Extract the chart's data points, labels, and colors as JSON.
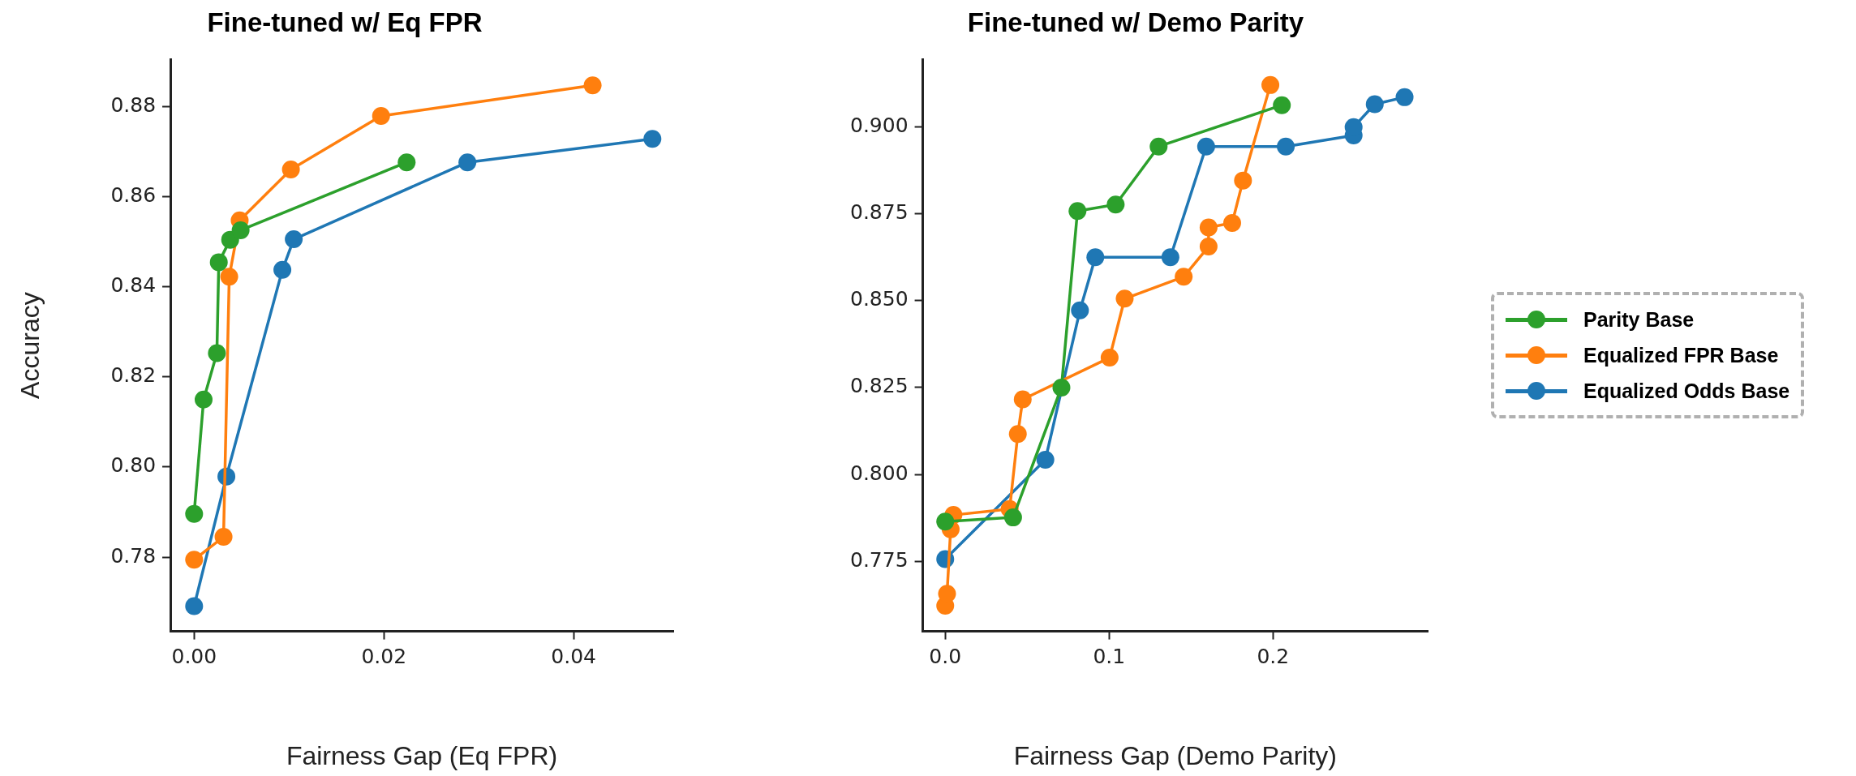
{
  "chart_data": [
    {
      "type": "line",
      "title": "Fine-tuned w/ Eq FPR",
      "xlabel": "Fairness Gap (Eq FPR)",
      "ylabel": "Accuracy",
      "marker": "circle",
      "line_style": "solid",
      "xlim": [
        -0.0025,
        0.0505
      ],
      "xticks": [
        {
          "value": 0,
          "label": "0.00"
        },
        {
          "value": 0.02,
          "label": "0.02"
        },
        {
          "value": 0.04,
          "label": "0.04"
        }
      ],
      "ylim": [
        0.7635,
        0.8905
      ],
      "yticks": [
        0.78,
        {
          "value": 0.8,
          "label": "0.80"
        },
        0.82,
        0.84,
        0.86,
        0.88
      ],
      "series": [
        {
          "color": "#2ca02c",
          "x": [
            0,
            0.001,
            0.0024,
            0.0026,
            0.0038,
            0.0049,
            0.0224
          ],
          "values": [
            0.7896,
            0.815,
            0.8253,
            0.8455,
            0.8505,
            0.8526,
            0.8677
          ]
        },
        {
          "color": "#ff7f0e",
          "x": [
            0,
            0.0031,
            0.0037,
            0.0048,
            0.0102,
            0.0197,
            0.042
          ],
          "values": [
            0.7794,
            0.7845,
            0.8423,
            0.8548,
            0.8661,
            0.878,
            0.8848
          ]
        },
        {
          "color": "#1f77b4",
          "x": [
            0,
            0.0034,
            0.0093,
            0.0105,
            0.0288,
            0.0483
          ],
          "values": [
            0.7691,
            0.7979,
            0.8438,
            0.8506,
            0.8677,
            0.8729
          ]
        }
      ]
    },
    {
      "type": "line",
      "title": "Fine-tuned w/ Demo Parity",
      "xlabel": "Fairness Gap (Demo Parity)",
      "marker": "circle",
      "line_style": "solid",
      "legend": "right",
      "xlim": [
        -0.0137,
        0.2944
      ],
      "xticks": [
        {
          "value": 0,
          "label": "0.0"
        },
        {
          "value": 0.1,
          "label": "0.1"
        },
        {
          "value": 0.2,
          "label": "0.2"
        }
      ],
      "ylim": [
        0.7548,
        0.9194
      ],
      "yticks": [
        0.775,
        {
          "value": 0.8,
          "label": "0.800"
        },
        0.825,
        {
          "value": 0.85,
          "label": "0.850"
        },
        0.875,
        {
          "value": 0.9,
          "label": "0.900"
        }
      ],
      "series": [
        {
          "name": "Parity Base",
          "color": "#2ca02c",
          "x": [
            0,
            0.0414,
            0.0709,
            0.0807,
            0.104,
            0.1302,
            0.2054
          ],
          "values": [
            0.7864,
            0.7876,
            0.825,
            0.8758,
            0.8777,
            0.8944,
            0.9063
          ]
        },
        {
          "name": "Equalized FPR Base",
          "color": "#ff7f0e",
          "x": [
            0,
            0.0011,
            0.0033,
            0.005,
            0.0393,
            0.0443,
            0.0473,
            0.1003,
            0.1095,
            0.1455,
            0.1607,
            0.1607,
            0.1751,
            0.1817,
            0.1984
          ],
          "values": [
            0.7622,
            0.7656,
            0.7842,
            0.7883,
            0.79,
            0.8116,
            0.8216,
            0.8336,
            0.8506,
            0.8569,
            0.8656,
            0.8711,
            0.8724,
            0.8846,
            0.9121
          ]
        },
        {
          "name": "Equalized Odds Base",
          "color": "#1f77b4",
          "x": [
            0,
            0.003,
            0.0611,
            0.0822,
            0.0916,
            0.1374,
            0.1592,
            0.2078,
            0.2492,
            0.2492,
            0.2621,
            0.2803
          ],
          "values": [
            0.7756,
            null,
            0.8042,
            0.8472,
            0.8625,
            0.8625,
            0.8944,
            0.8944,
            0.8976,
            0.9,
            0.9066,
            0.9086
          ]
        }
      ]
    }
  ]
}
